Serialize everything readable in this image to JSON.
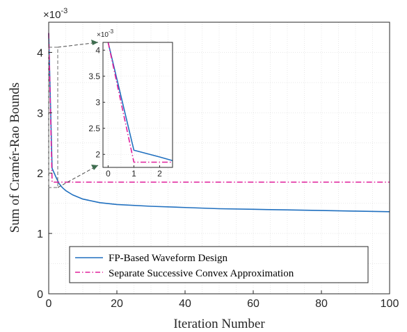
{
  "chart_data": [
    {
      "type": "line",
      "title": "",
      "xlabel": "Iteration Number",
      "ylabel": "Sum of Cramér-Rao Bounds",
      "y_exponent": "×10",
      "y_exponent_power": "-3",
      "xlim": [
        0,
        100
      ],
      "ylim": [
        0,
        4.5
      ],
      "xticks": [
        "0",
        "20",
        "40",
        "60",
        "80",
        "100"
      ],
      "yticks": [
        "0",
        "1",
        "2",
        "3",
        "4"
      ],
      "grid": true,
      "legend": "lower-center",
      "series": [
        {
          "name": "FP-Based Waveform Design",
          "color": "#1f6fbf",
          "style": "solid",
          "x": [
            0,
            1,
            2,
            3,
            4,
            5,
            7,
            10,
            15,
            20,
            30,
            40,
            50,
            60,
            70,
            80,
            90,
            100
          ],
          "y": [
            4.32,
            2.08,
            1.95,
            1.83,
            1.76,
            1.71,
            1.64,
            1.57,
            1.51,
            1.48,
            1.45,
            1.43,
            1.41,
            1.4,
            1.39,
            1.38,
            1.37,
            1.36
          ]
        },
        {
          "name": "Separate Successive Convex Approximation",
          "color": "#e0209c",
          "style": "dashdot",
          "x": [
            0,
            1,
            2,
            3,
            100
          ],
          "y": [
            4.32,
            1.85,
            1.85,
            1.85,
            1.85
          ]
        }
      ]
    },
    {
      "type": "line",
      "role": "inset",
      "xlim": [
        -0.2,
        2.5
      ],
      "ylim": [
        1.75,
        4.15
      ],
      "xticks": [
        "0",
        "1",
        "2"
      ],
      "yticks": [
        "2",
        "2.5",
        "3",
        "3.5",
        "4"
      ],
      "y_exponent": "×10",
      "y_exponent_power": "-3",
      "grid": true,
      "series": [
        {
          "name": "FP-Based Waveform Design",
          "color": "#1f6fbf",
          "style": "solid",
          "x": [
            0,
            1,
            2,
            2.5
          ],
          "y": [
            4.15,
            2.08,
            1.95,
            1.88
          ]
        },
        {
          "name": "Separate Successive Convex Approximation",
          "color": "#e0209c",
          "style": "dashdot",
          "x": [
            0,
            1,
            2,
            2.5
          ],
          "y": [
            4.15,
            1.85,
            1.85,
            1.85
          ]
        }
      ]
    }
  ]
}
